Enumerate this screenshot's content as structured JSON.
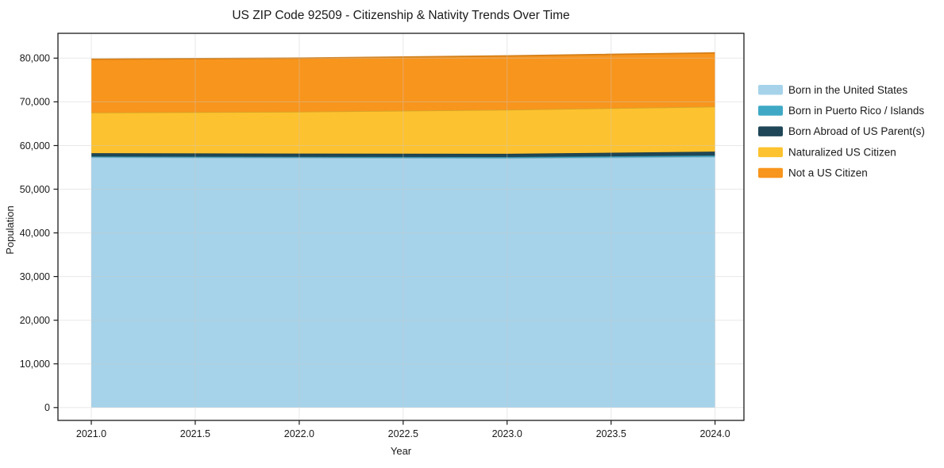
{
  "title": "US ZIP Code 92509 - Citizenship &amp; Nativity Trends Over Time",
  "axes": {
    "x": {
      "label": "Year",
      "ticks": [
        "2021.0",
        "2021.5",
        "2022.0",
        "2022.5",
        "2023.0",
        "2023.5",
        "2024.0"
      ]
    },
    "y": {
      "label": "Population",
      "ticks": [
        "0",
        "10,000",
        "20,000",
        "30,000",
        "40,000",
        "50,000",
        "60,000",
        "70,000",
        "80,000"
      ]
    }
  },
  "legend": {
    "position": "right-outside",
    "framed": false
  },
  "chart_data": {
    "type": "area",
    "stacked": true,
    "title": "US ZIP Code 92509 - Citizenship & Nativity Trends Over Time",
    "xlabel": "Year",
    "ylabel": "Population",
    "x": [
      2021,
      2022,
      2023,
      2024
    ],
    "xlim": [
      2020.84,
      2024.14
    ],
    "ylim": [
      -3000,
      85700
    ],
    "grid": true,
    "legend_position": "right",
    "series": [
      {
        "name": "Born in the United States",
        "color": "#a6d3ea",
        "values": [
          57300,
          57200,
          57100,
          57400
        ]
      },
      {
        "name": "Born in Puerto Rico / Islands",
        "color": "#3fa9c5",
        "values": [
          200,
          200,
          250,
          300
        ]
      },
      {
        "name": "Born Abroad of US Parent(s)",
        "color": "#1f4656",
        "values": [
          750,
          750,
          750,
          900
        ]
      },
      {
        "name": "Naturalized US Citizen",
        "color": "#fdc22f",
        "values": [
          9300,
          9600,
          10100,
          10300
        ]
      },
      {
        "name": "Not a US Citizen",
        "color": "#f8951d",
        "values": [
          12200,
          12250,
          12300,
          12300
        ]
      }
    ],
    "stacked_totals": [
      79750,
      80000,
      80500,
      81200
    ]
  }
}
